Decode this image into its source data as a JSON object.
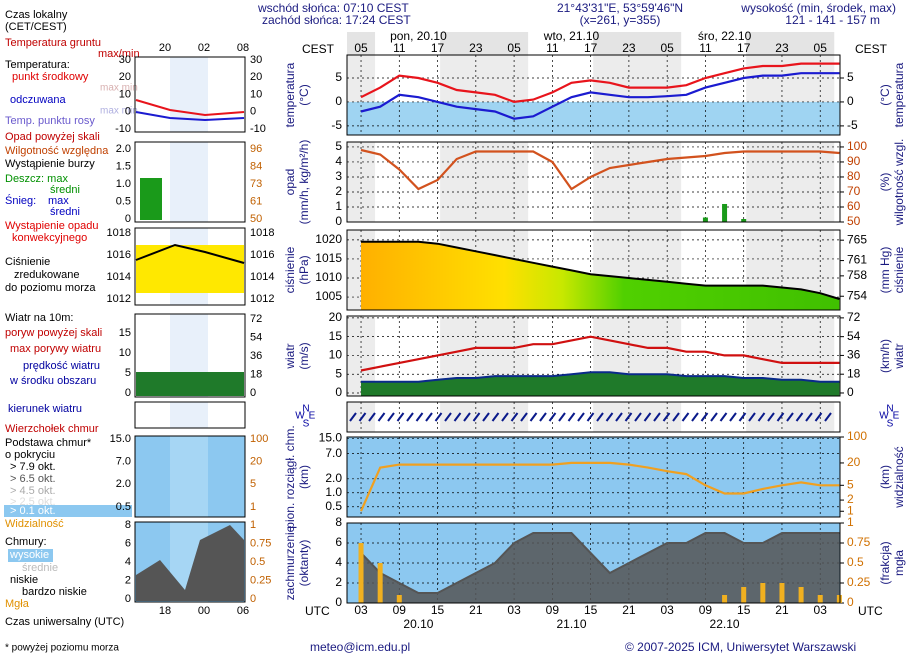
{
  "header": {
    "sunrise": "wschód słońca: 07:10 CEST",
    "sunset": "zachód słońca: 17:24 CEST",
    "coords": "21°43'31\"E, 53°59'46\"N",
    "grid_point": "(x=261, y=355)",
    "elevation_title": "wysokość (min, środek, max)",
    "elevation": "121 - 141 - 157 m"
  },
  "time": {
    "zone_top": "CEST",
    "zone_bottom": "UTC",
    "xlim": [
      0.8,
      78.1
    ],
    "xticks": [
      3,
      9,
      15,
      21,
      27,
      33,
      39,
      45,
      51,
      57,
      63,
      69,
      75
    ],
    "hours_top": [
      "05",
      "11",
      "17",
      "23",
      "05",
      "11",
      "17",
      "23",
      "05",
      "11",
      "17",
      "23",
      "05"
    ],
    "hours_bottom": [
      "03",
      "09",
      "15",
      "21",
      "03",
      "09",
      "15",
      "21",
      "03",
      "09",
      "15",
      "21",
      "03"
    ],
    "day_positions": [
      12,
      36,
      60
    ],
    "days_top": [
      "pon, 20.10",
      "wto, 21.10",
      "śro, 22.10"
    ],
    "days_bottom": [
      "20.10",
      "21.10",
      "22.10"
    ],
    "x": [
      3,
      6,
      9,
      12,
      15,
      18,
      21,
      24,
      27,
      30,
      33,
      36,
      39,
      42,
      45,
      48,
      51,
      54,
      57,
      60,
      63,
      66,
      69,
      72,
      75,
      78
    ]
  },
  "panels": [
    {
      "left_label": [
        "temperatura",
        "(°C)"
      ],
      "right_label": [
        "(°C)",
        "temperatura"
      ],
      "ylim": [
        -6.9,
        9.8
      ],
      "yticks": [
        -5,
        0,
        5
      ],
      "y2lim": [
        -6.9,
        9.8
      ],
      "y2ticks": [
        -5,
        0,
        5
      ],
      "y2_color": "#000000",
      "lines": [
        {
          "kind": "line",
          "axis": "y",
          "color": "#e8141c",
          "values": [
            1,
            3,
            5.5,
            5,
            4,
            2.5,
            2,
            1.5,
            0,
            0.5,
            2,
            4,
            4.5,
            4,
            3,
            3,
            3,
            3.5,
            5,
            6,
            7,
            7.5,
            7.5,
            8,
            8,
            8
          ]
        },
        {
          "kind": "line",
          "axis": "y",
          "color": "#1b1bd0",
          "values": [
            -2,
            -1,
            1.5,
            1,
            0,
            -1,
            -1.5,
            -2,
            -3.5,
            -3,
            -1,
            1,
            2,
            1.5,
            1,
            1,
            1.2,
            1.5,
            3,
            4,
            5,
            5.5,
            5.5,
            6,
            6,
            6
          ]
        }
      ]
    },
    {
      "left_label": [
        "opad",
        "(mm/h, kg/m²/h)"
      ],
      "right_label": [
        "(%)",
        "wilgotność wzgl."
      ],
      "ylim": [
        0,
        5.33
      ],
      "yticks": [
        0,
        1,
        2,
        3,
        4,
        5
      ],
      "y2lim": [
        50,
        103.3
      ],
      "y2ticks": [
        50,
        60,
        70,
        80,
        90,
        100
      ],
      "y2_color": "#c04000",
      "lines": [
        {
          "kind": "bars",
          "axis": "y",
          "color": "#1a9a1a",
          "values": [
            0,
            0,
            0,
            0,
            0,
            0,
            0,
            0,
            0,
            0,
            0,
            0,
            0,
            0,
            0,
            0,
            0,
            0,
            0.3,
            1.2,
            0.2,
            0,
            0,
            0,
            0,
            0
          ]
        },
        {
          "kind": "line",
          "axis": "y2",
          "color": "#d2521e",
          "values": [
            98,
            95,
            85,
            72,
            78,
            92,
            97,
            97,
            97,
            97,
            90,
            72,
            80,
            86,
            88,
            90,
            92,
            93,
            94,
            96,
            97,
            97,
            97,
            97,
            97,
            96
          ]
        }
      ]
    },
    {
      "left_label": [
        "ciśnienie",
        "(hPa)"
      ],
      "right_label": [
        "(mm Hg)",
        "ciśnienie"
      ],
      "ylim": [
        1001.6,
        1022.6
      ],
      "yticks": [
        1005,
        1010,
        1015,
        1020
      ],
      "y2lim": [
        751.3,
        767.0
      ],
      "y2ticks": [
        754,
        758,
        761,
        765
      ],
      "y2_color": "#000000",
      "lines": [
        {
          "kind": "area",
          "axis": "y",
          "color": "#000000",
          "values": [
            1019.5,
            1019.5,
            1019.5,
            1019.5,
            1019,
            1018,
            1017,
            1016,
            1015,
            1014,
            1013,
            1012,
            1011,
            1010.5,
            1010,
            1009.5,
            1009,
            1008.5,
            1008,
            1008,
            1008,
            1008,
            1007.5,
            1007,
            1006,
            1004.5
          ]
        }
      ]
    },
    {
      "left_label": [
        "wiatr",
        "(m/s)"
      ],
      "right_label": [
        "(km/h)",
        "wiatr"
      ],
      "ylim": [
        -0.8,
        20.5
      ],
      "yticks": [
        0,
        5,
        10,
        15,
        20
      ],
      "y2lim": [
        -2.9,
        73.8
      ],
      "y2ticks": [
        0,
        18,
        36,
        54,
        72
      ],
      "y2_color": "#000000",
      "lines": [
        {
          "kind": "area",
          "axis": "y",
          "color": "#0a2a8a",
          "values": [
            3,
            3,
            3,
            3,
            3.5,
            4,
            4,
            4.5,
            4.5,
            4.5,
            4.5,
            5,
            5.5,
            5.5,
            5,
            5,
            5,
            4.5,
            4.5,
            4.5,
            4,
            4,
            3.5,
            3.5,
            3,
            3
          ]
        },
        {
          "kind": "line",
          "axis": "y",
          "color": "#d01010",
          "values": [
            6,
            7,
            8,
            9,
            10,
            11,
            12,
            12,
            12,
            13,
            13,
            14,
            15,
            14,
            13,
            12,
            12,
            11,
            11,
            10,
            10,
            9,
            8,
            8,
            8,
            8
          ]
        }
      ]
    },
    {
      "left_label": [],
      "right_label": [],
      "compass": [
        "N",
        "W",
        "E",
        "S"
      ],
      "lines": []
    },
    {
      "left_label": [
        "pion. rozciągł. chm.",
        "(km)"
      ],
      "right_label": [
        "(km)",
        "widzialność"
      ],
      "scale": "log",
      "ylim": [
        0.3,
        16
      ],
      "yticks": [
        {
          "value": 0.5,
          "label": "0.5"
        },
        {
          "value": 1,
          "label": "1.0"
        },
        {
          "value": 2,
          "label": "2.0"
        },
        {
          "value": 7,
          "label": "7.0"
        },
        {
          "value": 15,
          "label": "15.0"
        }
      ],
      "y2lim": [
        0.7,
        100
      ],
      "y2ticks": [
        1,
        2,
        5,
        20,
        100
      ],
      "y2_color": "#d07000",
      "lines": [
        {
          "kind": "line",
          "axis": "y2",
          "color": "#f0a020",
          "values": [
            1,
            15,
            18,
            18,
            18,
            18,
            18,
            18,
            18,
            18,
            18,
            20,
            20,
            20,
            18,
            15,
            12,
            10,
            5,
            3,
            3,
            4,
            5,
            6,
            5,
            5
          ]
        }
      ]
    },
    {
      "left_label": [
        "zachmurzenie",
        "(oktanty)"
      ],
      "right_label": [
        "(frakcja)",
        "mgła"
      ],
      "ylim": [
        0,
        8
      ],
      "yticks": [
        0,
        2,
        4,
        6,
        8
      ],
      "y2lim": [
        0,
        1
      ],
      "y2ticks": [
        0,
        0.25,
        0.5,
        0.75,
        1
      ],
      "y2_color": "#d07000",
      "lines": [
        {
          "kind": "area",
          "axis": "y",
          "color": "#555555",
          "values": [
            5,
            3,
            2,
            1,
            1,
            2,
            3,
            4,
            6,
            7,
            7,
            7,
            5,
            3,
            4,
            5,
            6,
            6,
            7,
            7,
            6,
            6,
            7,
            7,
            7,
            7
          ]
        },
        {
          "kind": "bars",
          "axis": "y2",
          "color": "#f0b020",
          "values": [
            0.75,
            0.5,
            0.1,
            0,
            0,
            0,
            0,
            0,
            0,
            0,
            0,
            0,
            0,
            0,
            0,
            0,
            0,
            0,
            0,
            0.1,
            0.2,
            0.25,
            0.25,
            0.2,
            0.1,
            0.1
          ]
        }
      ]
    }
  ],
  "legend": {
    "local_time": "Czas lokalny",
    "local_zone": "(CET/CEST)",
    "mini_top": [
      "20",
      "02",
      "08"
    ],
    "mini_bottom": [
      "18",
      "00",
      "06"
    ],
    "ground_temp": "Temperatura gruntu",
    "ground_maxmin": "max/min",
    "temperature": "Temperatura:",
    "mid_point": "punkt środkowy",
    "max_min_1": "max min",
    "perceived": "odczuwana",
    "max_min_2": "max min",
    "dew_point": "Temp. punktu rosy",
    "precip_over": "Opad powyżej skali",
    "humidity": "Wilgotność względna",
    "storm": "Wystąpienie burzy",
    "rain": "Deszcz: max",
    "rain_avg": "średni",
    "snow": "Śnieg:",
    "snow_max": "max",
    "snow_avg": "średni",
    "convective_1": "Wystąpienie opadu",
    "convective_2": "konwekcyjnego",
    "pressure_1": "Ciśnienie",
    "pressure_2": "zredukowane",
    "pressure_3": "do poziomu morza",
    "wind": "Wiatr na 10m:",
    "gust_over": "poryw powyżej skali",
    "gust_max": "max porywy wiatru",
    "wind_speed": "prędkość wiatru",
    "wind_area": "w środku obszaru",
    "wind_dir": "kierunek wiatru",
    "cloud_top": "Wierzchołek chmur",
    "cloud_base_1": "Podstawa chmur*",
    "cloud_base_2": "o pokryciu",
    "okt": [
      "> 7.9 okt.",
      "> 6.5 okt.",
      "> 4.5 okt.",
      "> 2.5 okt.",
      "> 0.1 okt."
    ],
    "visibility": "Widzialność",
    "clouds": "Chmury:",
    "high": "wysokie",
    "mid": "średnie",
    "low": "niskie",
    "very_low": "bardzo niskie",
    "fog": "Mgła",
    "utc": "Czas uniwersalny (UTC)",
    "mini_ticks": {
      "t_left": [
        "30",
        "20",
        "10",
        "0",
        "-10"
      ],
      "t_right": [
        "30",
        "20",
        "10",
        "0",
        "-10"
      ],
      "p_left": [
        "2.0",
        "1.5",
        "1.0",
        "0.5",
        "0"
      ],
      "p_right": [
        "96",
        "84",
        "73",
        "61",
        "50"
      ],
      "pr_left": [
        "1018",
        "1016",
        "1014",
        "1012"
      ],
      "pr_right": [
        "1018",
        "1016",
        "1014",
        "1012"
      ],
      "w_left": [
        "15",
        "10",
        "5",
        "0"
      ],
      "w_right": [
        "72",
        "54",
        "36",
        "18",
        "0"
      ],
      "c_left": [
        "15.0",
        "7.0",
        "2.0",
        "0.5"
      ],
      "c_right": [
        "100",
        "20",
        "5",
        "1"
      ],
      "cc_left": [
        "8",
        "6",
        "4",
        "2",
        "0"
      ],
      "cc_right": [
        "1",
        "0.75",
        "0.5",
        "0.25",
        "0"
      ]
    }
  },
  "footer": {
    "note": "* powyżej poziomu morza",
    "email": "meteo@icm.edu.pl",
    "copyright": "© 2007-2025 ICM, Uniwersytet Warszawski"
  }
}
